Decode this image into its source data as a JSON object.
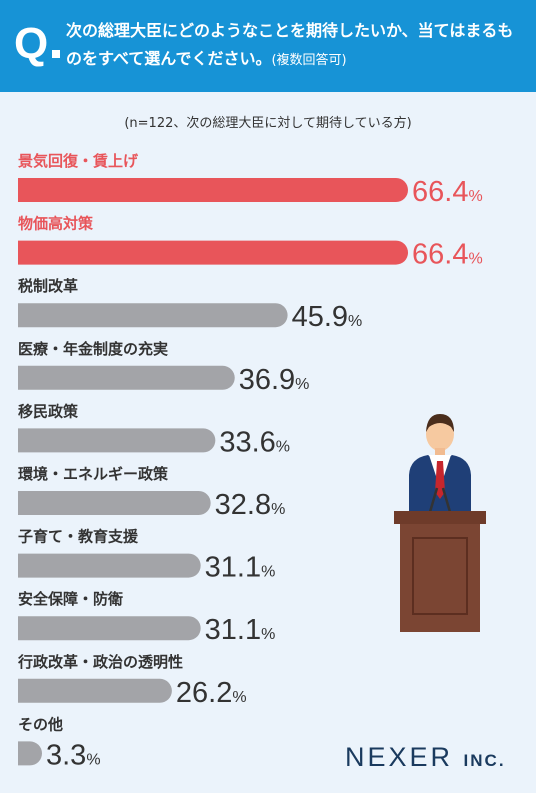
{
  "header": {
    "q_mark": "Q",
    "question": "次の総理大臣にどのようなことを期待したいか、当てはまるものをすべて選んでください。",
    "note": "(複数回答可)"
  },
  "sample_note": "(n=122、次の総理大臣に対して期待している方)",
  "brand": {
    "name": "NEXER",
    "suffix": "INC."
  },
  "colors": {
    "header_bg": "#1793d6",
    "highlight": "#e8555a",
    "bar": "#a3a4a8",
    "background": "#ebf3fb"
  },
  "chart_data": {
    "type": "bar",
    "orientation": "horizontal",
    "unit": "%",
    "categories": [
      "景気回復・賃上げ",
      "物価高対策",
      "税制改革",
      "医療・年金制度の充実",
      "移民政策",
      "環境・エネルギー政策",
      "子育て・教育支援",
      "安全保障・防衛",
      "行政改革・政治の透明性",
      "その他"
    ],
    "values": [
      66.4,
      66.4,
      45.9,
      36.9,
      33.6,
      32.8,
      31.1,
      31.1,
      26.2,
      3.3
    ],
    "value_labels": [
      "66.4",
      "66.4",
      "45.9",
      "36.9",
      "33.6",
      "32.8",
      "31.1",
      "31.1",
      "26.2",
      "3.3"
    ],
    "highlighted": [
      true,
      true,
      false,
      false,
      false,
      false,
      false,
      false,
      false,
      false
    ]
  }
}
